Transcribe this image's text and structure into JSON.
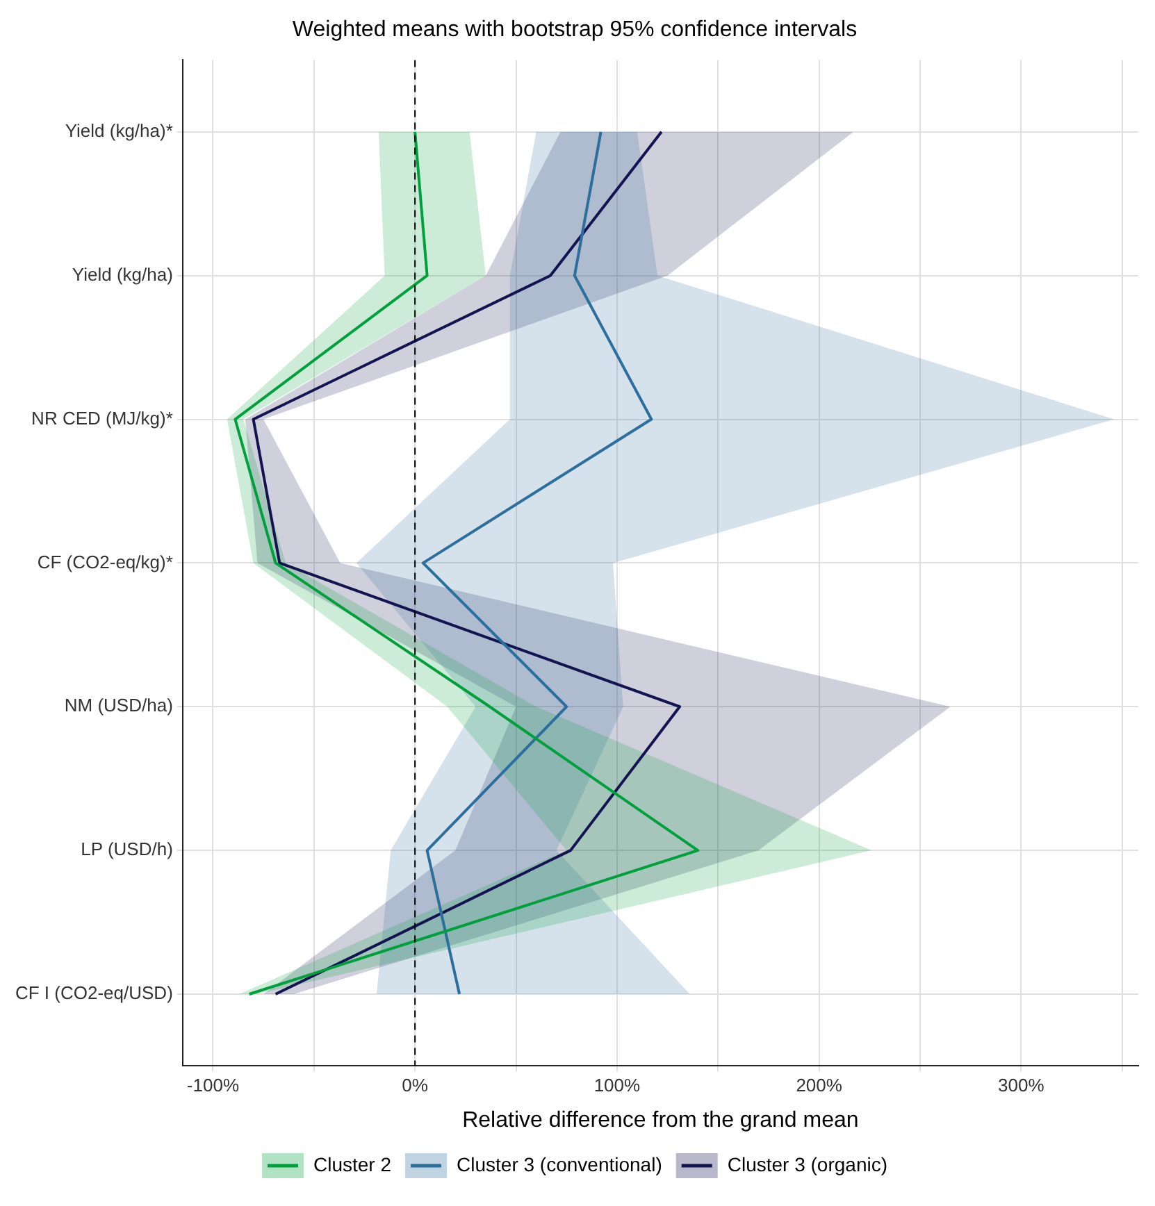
{
  "chart_data": {
    "type": "line",
    "orientation": "horizontal",
    "title": "Weighted means with bootstrap 95% confidence intervals",
    "xlabel": "Relative difference from the grand mean",
    "categories": [
      "Yield (kg/ha)*",
      "Yield (kg/ha)",
      "NR CED (MJ/kg)*",
      "CF (CO2-eq/kg)*",
      "NM (USD/ha)",
      "LP (USD/h)",
      "CF I (CO2-eq/USD)"
    ],
    "series": [
      {
        "name": "Cluster 2",
        "color": "#00a03c",
        "values": [
          0,
          6,
          -89,
          -69,
          37,
          140,
          -82
        ],
        "lower": [
          -18,
          -15,
          -93,
          -80,
          16,
          75,
          -87
        ],
        "upper": [
          27,
          35,
          -85,
          -64,
          60,
          226,
          -78
        ]
      },
      {
        "name": "Cluster 3 (conventional)",
        "color": "#2c6e9c",
        "values": [
          92,
          79,
          117,
          4,
          75,
          6,
          22
        ],
        "lower": [
          60,
          47,
          47,
          -29,
          30,
          -12,
          -19
        ],
        "upper": [
          110,
          120,
          346,
          98,
          103,
          70,
          136
        ]
      },
      {
        "name": "Cluster 3 (organic)",
        "color": "#141450",
        "values": [
          122,
          67,
          -80,
          -67,
          131,
          77,
          -69
        ],
        "lower": [
          72,
          35,
          -84,
          -78,
          50,
          20,
          -75
        ],
        "upper": [
          217,
          125,
          -75,
          -37,
          265,
          170,
          -60
        ]
      }
    ],
    "xlim": [
      -115,
      358
    ],
    "xticks": [
      {
        "value": -100,
        "label": "-100%"
      },
      {
        "value": -50,
        "label": null
      },
      {
        "value": 0,
        "label": "0%"
      },
      {
        "value": 50,
        "label": null
      },
      {
        "value": 100,
        "label": "100%"
      },
      {
        "value": 150,
        "label": null
      },
      {
        "value": 200,
        "label": "200%"
      },
      {
        "value": 250,
        "label": null
      },
      {
        "value": 300,
        "label": "300%"
      },
      {
        "value": 350,
        "label": null
      }
    ],
    "ref_lines": [
      {
        "axis": "x",
        "value": 0,
        "line_style": "dashed",
        "color": "#000000"
      }
    ],
    "grid": true,
    "legend": "bottom",
    "marker": "none",
    "line_style": "solid"
  }
}
